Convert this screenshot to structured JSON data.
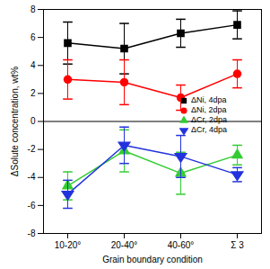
{
  "chart_data": {
    "type": "line",
    "xlabel": "Grain boundary condition",
    "ylabel": "ΔSolute concentration, wt%",
    "categories": [
      "10-20°",
      "20-40°",
      "40-60°",
      "Σ 3"
    ],
    "ylim": [
      -8,
      8
    ],
    "yticks": [
      -8,
      -6,
      -4,
      -2,
      0,
      2,
      4,
      6,
      8
    ],
    "grid": false,
    "legend": "right",
    "series": [
      {
        "name": "ΔNi, 4dpa",
        "color": "#000000",
        "marker": "square",
        "values": [
          5.6,
          5.2,
          6.3,
          6.9
        ],
        "errors": [
          1.5,
          1.8,
          1.0,
          1.0
        ]
      },
      {
        "name": "ΔNi, 2dpa",
        "color": "#ff0000",
        "marker": "circle",
        "values": [
          3.0,
          2.8,
          1.7,
          3.4
        ],
        "errors": [
          1.4,
          1.6,
          0.9,
          1.0
        ]
      },
      {
        "name": "ΔCr, 2dpa",
        "color": "#33cc33",
        "marker": "triangle",
        "values": [
          -4.6,
          -2.1,
          -3.7,
          -2.4
        ],
        "errors": [
          1.0,
          1.5,
          1.5,
          0.7
        ]
      },
      {
        "name": "ΔCr, 4dpa",
        "color": "#2233dd",
        "marker": "triangle-down",
        "values": [
          -5.2,
          -1.7,
          -2.5,
          -3.8
        ],
        "errors": [
          1.0,
          1.3,
          1.5,
          0.5
        ]
      }
    ]
  }
}
